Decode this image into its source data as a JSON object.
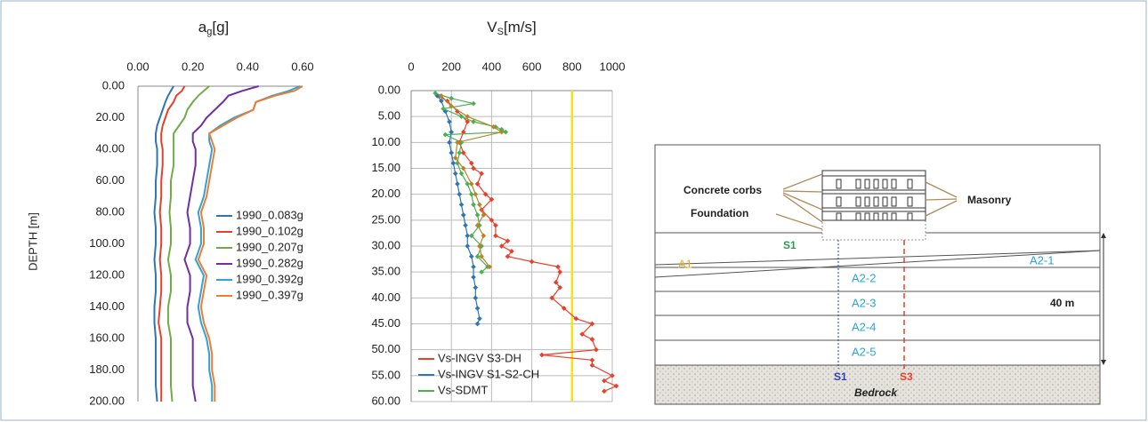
{
  "chart_data": [
    {
      "type": "profile",
      "title": {
        "main": "a",
        "sub": "g",
        "rest": "[g]"
      },
      "ylabel": "DEPTH [m]",
      "xlim": [
        0,
        0.6
      ],
      "xticks": [
        {
          "value": 0,
          "label": "0.00"
        },
        {
          "value": 0.2,
          "label": "0.20"
        },
        {
          "value": 0.4,
          "label": "0.40"
        },
        {
          "value": 0.6,
          "label": "0.60"
        }
      ],
      "ylim": [
        0,
        200
      ],
      "yticks": [
        {
          "value": 0,
          "label": "0.00"
        },
        {
          "value": 20,
          "label": "20.00"
        },
        {
          "value": 40,
          "label": "40.00"
        },
        {
          "value": 60,
          "label": "60.00"
        },
        {
          "value": 80,
          "label": "80.00"
        },
        {
          "value": 100,
          "label": "100.00"
        },
        {
          "value": 120,
          "label": "120.00"
        },
        {
          "value": 140,
          "label": "140.00"
        },
        {
          "value": 160,
          "label": "160.00"
        },
        {
          "value": 180,
          "label": "180.00"
        },
        {
          "value": 200,
          "label": "200.00"
        }
      ],
      "grid": false,
      "legend": "right",
      "depth": [
        0,
        3,
        6,
        10,
        15,
        20,
        25,
        30,
        35,
        40,
        50,
        60,
        70,
        80,
        90,
        100,
        110,
        120,
        130,
        140,
        150,
        160,
        170,
        180,
        190,
        200
      ],
      "series": [
        {
          "name": "1990_0.083g",
          "color": "#2e75b6",
          "values": [
            0.13,
            0.12,
            0.11,
            0.1,
            0.09,
            0.08,
            0.07,
            0.065,
            0.065,
            0.07,
            0.07,
            0.065,
            0.065,
            0.06,
            0.065,
            0.065,
            0.06,
            0.065,
            0.065,
            0.06,
            0.06,
            0.065,
            0.065,
            0.065,
            0.065,
            0.07
          ]
        },
        {
          "name": "1990_0.102g",
          "color": "#e8402a",
          "values": [
            0.17,
            0.16,
            0.14,
            0.13,
            0.11,
            0.1,
            0.09,
            0.085,
            0.085,
            0.09,
            0.09,
            0.085,
            0.085,
            0.08,
            0.085,
            0.085,
            0.08,
            0.085,
            0.085,
            0.08,
            0.075,
            0.085,
            0.085,
            0.085,
            0.085,
            0.085
          ]
        },
        {
          "name": "1990_0.207g",
          "color": "#70ad47",
          "values": [
            0.26,
            0.24,
            0.22,
            0.2,
            0.18,
            0.17,
            0.15,
            0.13,
            0.13,
            0.13,
            0.13,
            0.12,
            0.12,
            0.115,
            0.12,
            0.12,
            0.11,
            0.12,
            0.12,
            0.11,
            0.11,
            0.12,
            0.12,
            0.12,
            0.12,
            0.125
          ]
        },
        {
          "name": "1990_0.282g",
          "color": "#7030a0",
          "values": [
            0.44,
            0.38,
            0.33,
            0.31,
            0.28,
            0.25,
            0.23,
            0.2,
            0.2,
            0.21,
            0.21,
            0.2,
            0.19,
            0.18,
            0.19,
            0.19,
            0.17,
            0.19,
            0.19,
            0.18,
            0.18,
            0.2,
            0.2,
            0.2,
            0.2,
            0.21
          ]
        },
        {
          "name": "1990_0.392g",
          "color": "#2ea3d6",
          "values": [
            0.59,
            0.55,
            0.49,
            0.43,
            0.42,
            0.35,
            0.3,
            0.26,
            0.26,
            0.27,
            0.26,
            0.25,
            0.24,
            0.22,
            0.23,
            0.23,
            0.21,
            0.24,
            0.23,
            0.22,
            0.23,
            0.25,
            0.26,
            0.26,
            0.27,
            0.27
          ]
        },
        {
          "name": "1990_0.397g",
          "color": "#ed7d31",
          "values": [
            0.6,
            0.57,
            0.5,
            0.43,
            0.42,
            0.36,
            0.31,
            0.26,
            0.27,
            0.28,
            0.27,
            0.26,
            0.25,
            0.23,
            0.24,
            0.24,
            0.22,
            0.25,
            0.24,
            0.23,
            0.24,
            0.26,
            0.27,
            0.27,
            0.28,
            0.28
          ]
        }
      ]
    },
    {
      "type": "profile",
      "title": {
        "main": "V",
        "sub": "S",
        "rest": "[m/s]"
      },
      "xlim": [
        0,
        1000
      ],
      "xticks": [
        0,
        200,
        400,
        600,
        800,
        1000
      ],
      "ylim": [
        0,
        60
      ],
      "yticks": [
        {
          "value": 0,
          "label": "0.00"
        },
        {
          "value": 5,
          "label": "5.00"
        },
        {
          "value": 10,
          "label": "10.00"
        },
        {
          "value": 15,
          "label": "15.00"
        },
        {
          "value": 20,
          "label": "20.00"
        },
        {
          "value": 25,
          "label": "25.00"
        },
        {
          "value": 30,
          "label": "30.00"
        },
        {
          "value": 35,
          "label": "35.00"
        },
        {
          "value": 40,
          "label": "40.00"
        },
        {
          "value": 45,
          "label": "45.00"
        },
        {
          "value": 50,
          "label": "50.00"
        },
        {
          "value": 55,
          "label": "55.00"
        },
        {
          "value": 60,
          "label": "60.00"
        }
      ],
      "grid": true,
      "legend": "lower left",
      "vline": {
        "value": 800,
        "color": "#f2e21a"
      },
      "series": [
        {
          "name": "Vs-INGV S3-DH",
          "color": "#e8402a",
          "depth": [
            1,
            2,
            4,
            6,
            8,
            10,
            12,
            14,
            15,
            16,
            18,
            20,
            21,
            23,
            25,
            26,
            28,
            29,
            30,
            31,
            32,
            33,
            34,
            35,
            37,
            38,
            40,
            42,
            44,
            45,
            47,
            48,
            50,
            51,
            52,
            53,
            55,
            56,
            57,
            58
          ],
          "values": [
            130,
            180,
            230,
            280,
            260,
            240,
            260,
            300,
            310,
            350,
            330,
            370,
            400,
            350,
            400,
            420,
            420,
            480,
            450,
            500,
            480,
            600,
            730,
            740,
            720,
            740,
            700,
            760,
            820,
            900,
            850,
            900,
            920,
            650,
            900,
            900,
            1000,
            960,
            1020,
            960
          ]
        },
        {
          "name": "Vs-INGV S1-S2-CH",
          "color": "#2e75b6",
          "depth": [
            1,
            2,
            4,
            6,
            8,
            10,
            12,
            14,
            16,
            18,
            20,
            22,
            24,
            26,
            28,
            30,
            32,
            34,
            36,
            38,
            40,
            42,
            44,
            45
          ],
          "values": [
            130,
            150,
            170,
            190,
            200,
            190,
            200,
            210,
            220,
            230,
            240,
            250,
            260,
            270,
            280,
            280,
            300,
            310,
            310,
            320,
            320,
            330,
            340,
            330
          ]
        },
        {
          "name": "Vs-SDMT",
          "color": "#4caf50",
          "depth": [
            0.5,
            1.5,
            2.5,
            3.5,
            5,
            6,
            7,
            7.5,
            8,
            8.5,
            10,
            12,
            14,
            16,
            18,
            20,
            22,
            24,
            26,
            28,
            30,
            32,
            34,
            35
          ],
          "values": [
            120,
            200,
            310,
            160,
            250,
            310,
            420,
            450,
            470,
            170,
            250,
            240,
            230,
            250,
            280,
            300,
            310,
            330,
            340,
            300,
            350,
            330,
            380,
            350
          ]
        },
        {
          "color": "#b5852b",
          "depth": [
            1,
            3,
            5,
            7,
            8,
            10,
            13,
            15,
            18,
            20,
            22,
            24,
            26,
            28,
            30,
            32,
            34
          ],
          "values": [
            150,
            200,
            280,
            410,
            450,
            230,
            220,
            260,
            300,
            320,
            340,
            360,
            330,
            360,
            340,
            350,
            390
          ]
        }
      ]
    }
  ],
  "diagram": {
    "labels": [
      "Concrete corbs",
      "Foundation",
      "Masonry",
      "S1",
      "A1",
      "A2-1",
      "A2-2",
      "A2-3",
      "A2-4",
      "A2-5",
      "40 m",
      "S1",
      "S3",
      "Bedrock"
    ]
  }
}
